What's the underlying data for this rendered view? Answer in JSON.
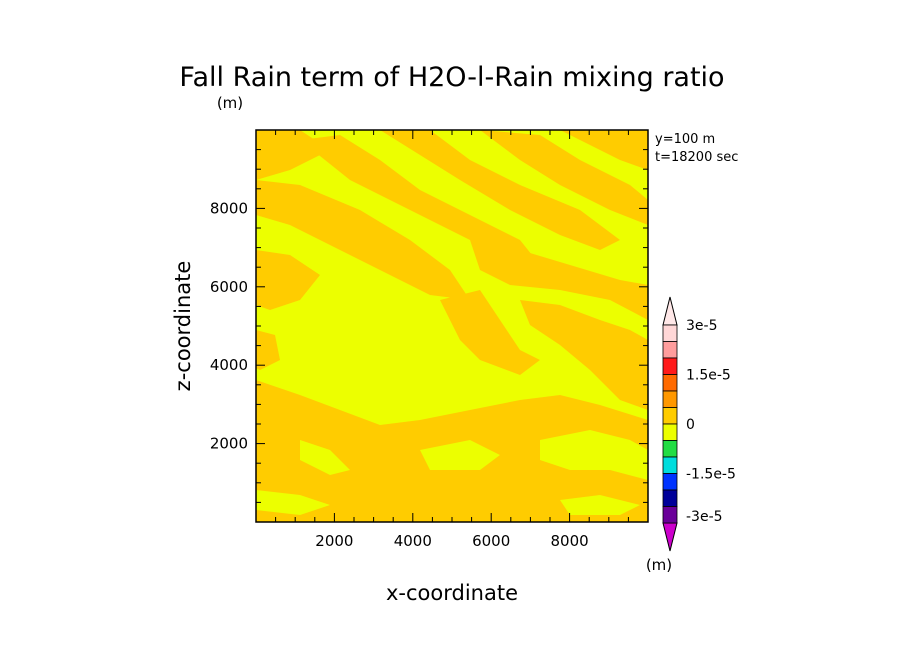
{
  "chart_data": {
    "type": "heatmap",
    "title": "Fall Rain term of H2O-l-Rain mixing ratio",
    "unit_label_top": "(m)",
    "info_lines": [
      "y=100 m",
      "t=18200 sec"
    ],
    "xlabel": "x-coordinate",
    "ylabel": "z-coordinate",
    "xlim": [
      0,
      10000
    ],
    "ylim": [
      0,
      10000
    ],
    "xticks": [
      2000,
      4000,
      6000,
      8000
    ],
    "yticks": [
      2000,
      4000,
      6000,
      8000
    ],
    "xtick_labels": [
      "2000",
      "4000",
      "6000",
      "8000"
    ],
    "ytick_labels": [
      "2000",
      "4000",
      "6000",
      "8000"
    ],
    "grid": false,
    "dominant_levels": [
      {
        "range": "-2.5e-6 to 0",
        "color": "#ecff00"
      },
      {
        "range": "0 to 7.5e-6",
        "color": "#ffcc00"
      }
    ],
    "colorbar": {
      "unit_label": "(m)",
      "tick_labels": [
        "3e-5",
        "1.5e-5",
        "0",
        "-1.5e-5",
        "-3e-5"
      ],
      "tick_values": [
        3e-05,
        1.5e-05,
        0,
        -1.5e-05,
        -3e-05
      ],
      "levels_colors_top_to_bottom": [
        "#ffd7d7",
        "#ff9d9d",
        "#ff1a1a",
        "#ff6a00",
        "#ff9800",
        "#ffcc00",
        "#ecff00",
        "#22dd44",
        "#00dddd",
        "#0033ff",
        "#000099",
        "#6a0099"
      ],
      "triangle_top_color": "#ffe8e8",
      "triangle_bottom_color": "#cc00cc"
    }
  }
}
